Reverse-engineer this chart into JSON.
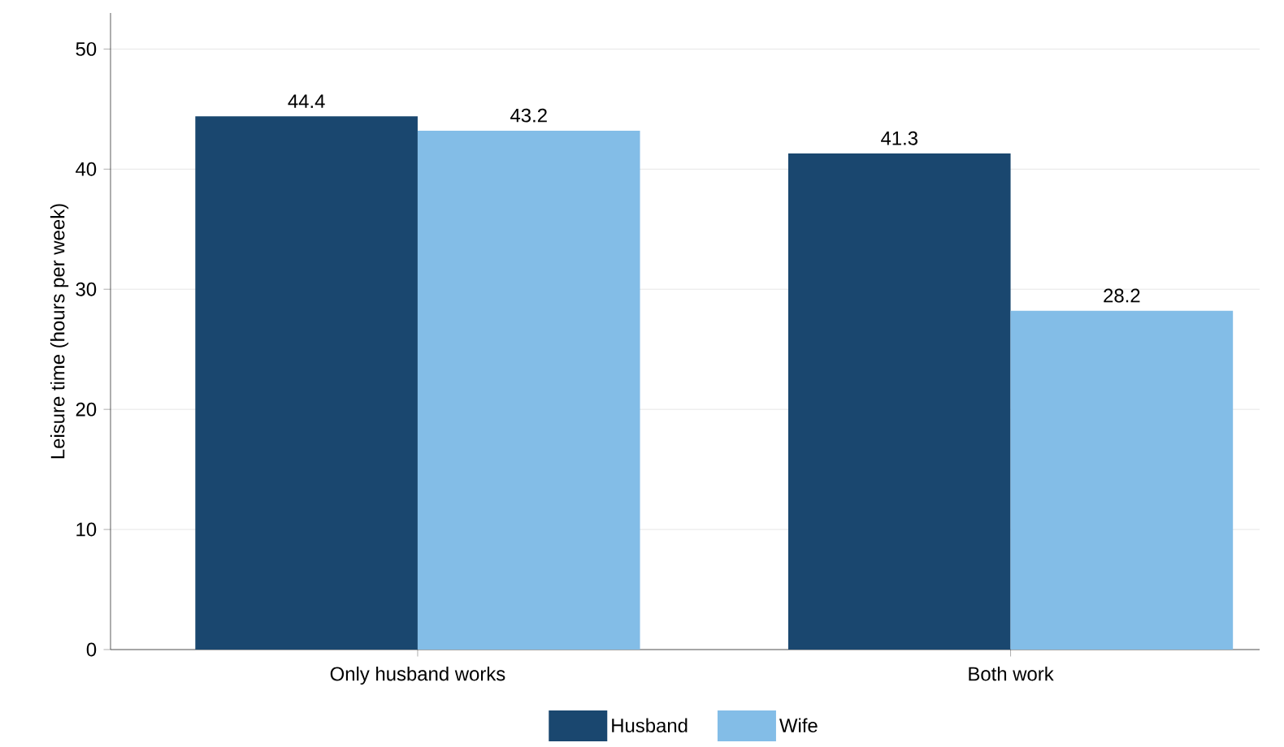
{
  "chart_data": {
    "type": "bar",
    "ylabel": "Leisure time (hours per week)",
    "categories": [
      "Only husband works",
      "Both work"
    ],
    "series": [
      {
        "name": "Husband",
        "color": "#1a476f",
        "values": [
          44.4,
          41.3
        ]
      },
      {
        "name": "Wife",
        "color": "#83bde7",
        "values": [
          43.2,
          28.2
        ]
      }
    ],
    "ylim": [
      0,
      53
    ],
    "yticks": [
      0,
      10,
      20,
      30,
      40,
      50
    ],
    "grid": "y",
    "legend": "bottom",
    "data_labels": true
  }
}
